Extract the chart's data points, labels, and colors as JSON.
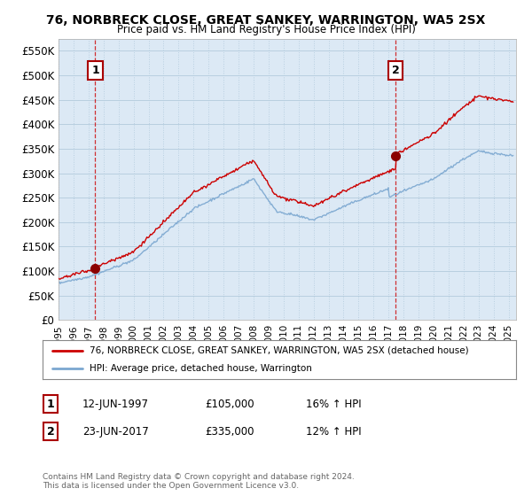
{
  "title": "76, NORBRECK CLOSE, GREAT SANKEY, WARRINGTON, WA5 2SX",
  "subtitle": "Price paid vs. HM Land Registry's House Price Index (HPI)",
  "ylim": [
    0,
    575000
  ],
  "yticks": [
    0,
    50000,
    100000,
    150000,
    200000,
    250000,
    300000,
    350000,
    400000,
    450000,
    500000,
    550000
  ],
  "ytick_labels": [
    "£0",
    "£50K",
    "£100K",
    "£150K",
    "£200K",
    "£250K",
    "£300K",
    "£350K",
    "£400K",
    "£450K",
    "£500K",
    "£550K"
  ],
  "bg_color": "#ffffff",
  "plot_bg": "#dce9f5",
  "grid_color": "#b8cfe0",
  "red_color": "#cc0000",
  "blue_color": "#7ba7d0",
  "marker1_x": 1997.45,
  "marker1_y": 105000,
  "marker2_x": 2017.47,
  "marker2_y": 335000,
  "sale1_label": "1",
  "sale1_date": "12-JUN-1997",
  "sale1_price": "£105,000",
  "sale1_hpi": "16% ↑ HPI",
  "sale2_label": "2",
  "sale2_date": "23-JUN-2017",
  "sale2_price": "£335,000",
  "sale2_hpi": "12% ↑ HPI",
  "legend_line1": "76, NORBRECK CLOSE, GREAT SANKEY, WARRINGTON, WA5 2SX (detached house)",
  "legend_line2": "HPI: Average price, detached house, Warrington",
  "footnote": "Contains HM Land Registry data © Crown copyright and database right 2024.\nThis data is licensed under the Open Government Licence v3.0.",
  "x_start": 1995.0,
  "x_end": 2025.5,
  "xtick_years": [
    1995,
    1996,
    1997,
    1998,
    1999,
    2000,
    2001,
    2002,
    2003,
    2004,
    2005,
    2006,
    2007,
    2008,
    2009,
    2010,
    2011,
    2012,
    2013,
    2014,
    2015,
    2016,
    2017,
    2018,
    2019,
    2020,
    2021,
    2022,
    2023,
    2024,
    2025
  ]
}
